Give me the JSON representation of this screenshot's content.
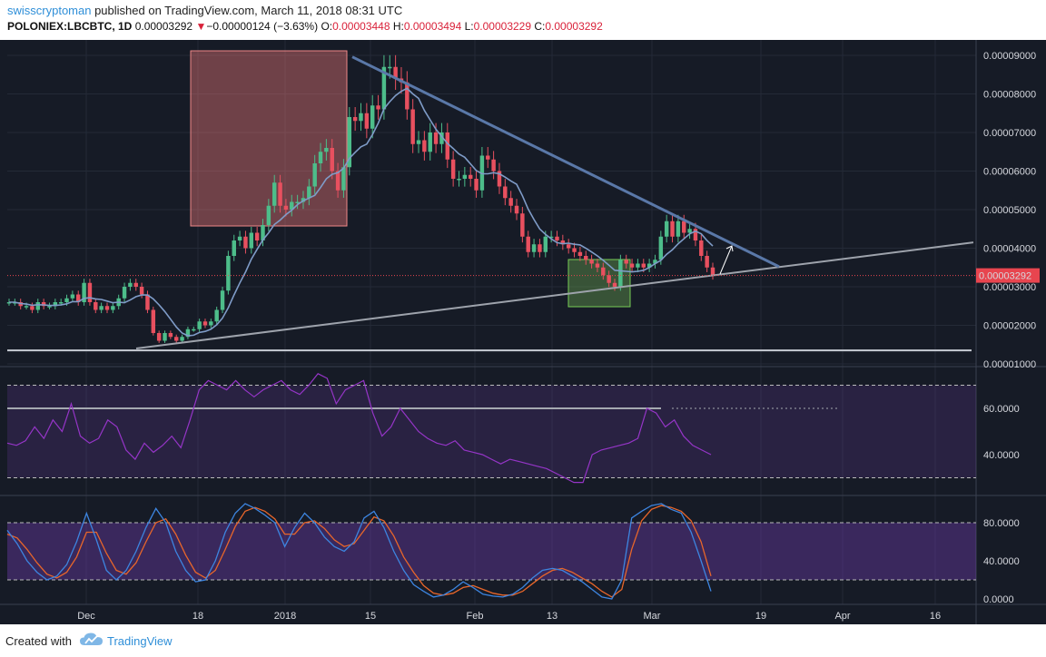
{
  "header": {
    "author": "swisscryptoman",
    "published_text": " published on TradingView.com, March 11, 2018 08:31 UTC",
    "symbol": "POLONIEX:LBCBTC, 1D",
    "last_price": "0.00003292",
    "change_arrow": "▼",
    "change": "−0.00000124 (−3.63%)",
    "o_label": "O:",
    "o_value": "0.00003448",
    "h_label": "H:",
    "h_value": "0.00003494",
    "l_label": "L:",
    "l_value": "0.00003229",
    "c_label": "C:",
    "c_value": "0.00003292"
  },
  "footer": {
    "created_with": "Created with",
    "brand": "TradingView"
  },
  "colors": {
    "background": "#161b26",
    "up": "#4dbd8a",
    "down": "#e8505f",
    "ma": "#7f9cc8",
    "trendline": "#5a78a8",
    "rsi": "#9535c7",
    "stoch_k": "#3d85e0",
    "stoch_d": "#e8662a",
    "price_label": "#e8454f"
  },
  "chart_data": [
    {
      "type": "candlestick",
      "title": "POLONIEX:LBCBTC, 1D",
      "y_tick_labels": [
        "0.00009000",
        "0.00008000",
        "0.00007000",
        "0.00006000",
        "0.00005000",
        "0.00004000",
        "0.00003000",
        "0.00002000",
        "0.00001000"
      ],
      "ylim": [
        9.6e-06,
        9.7e-06
      ],
      "last_price_label": "0.00003292",
      "x_tick_labels": [
        "Dec",
        "18",
        "2018",
        "15",
        "Feb",
        "13",
        "Mar",
        "19",
        "Apr",
        "16"
      ],
      "closes": [
        2.6e-05,
        2.6e-05,
        2.5e-05,
        2.5e-05,
        2.4e-05,
        2.6e-05,
        2.5e-05,
        2.5e-05,
        2.6e-05,
        2.6e-05,
        2.7e-05,
        2.8e-05,
        2.6e-05,
        3.1e-05,
        2.6e-05,
        2.4e-05,
        2.5e-05,
        2.4e-05,
        2.5e-05,
        2.7e-05,
        3e-05,
        3.1e-05,
        3e-05,
        2.8e-05,
        2.4e-05,
        1.8e-05,
        1.6e-05,
        1.8e-05,
        1.7e-05,
        1.6e-05,
        1.7e-05,
        1.9e-05,
        1.9e-05,
        2.1e-05,
        2e-05,
        2.1e-05,
        2.4e-05,
        2.9e-05,
        3.8e-05,
        4.2e-05,
        4.3e-05,
        4e-05,
        4.4e-05,
        4.2e-05,
        4.6e-05,
        5.1e-05,
        5.7e-05,
        5.1e-05,
        5e-05,
        5.2e-05,
        5.2e-05,
        5.3e-05,
        5.6e-05,
        6.2e-05,
        6.5e-05,
        6.6e-05,
        6e-05,
        5.5e-05,
        6.1e-05,
        7.4e-05,
        7.3e-05,
        7.5e-05,
        7.1e-05,
        7.7e-05,
        7.6e-05,
        8.7e-05,
        8.7e-05,
        8.4e-05,
        8.3e-05,
        7.6e-05,
        6.7e-05,
        6.8e-05,
        6.5e-05,
        7e-05,
        6.7e-05,
        7e-05,
        6.3e-05,
        5.8e-05,
        5.8e-05,
        5.9e-05,
        5.8e-05,
        5.5e-05,
        6.4e-05,
        6.3e-05,
        6e-05,
        5.6e-05,
        5.3e-05,
        5.1e-05,
        4.9e-05,
        4.3e-05,
        3.9e-05,
        4.1e-05,
        3.9e-05,
        4.3e-05,
        4.3e-05,
        4.2e-05,
        4.1e-05,
        4e-05,
        3.9e-05,
        3.8e-05,
        3.7e-05,
        3.6e-05,
        3.5e-05,
        3.3e-05,
        3.1e-05,
        3e-05,
        3.7e-05,
        3.6e-05,
        3.5e-05,
        3.6e-05,
        3.5e-05,
        3.6e-05,
        3.7e-05,
        4.3e-05,
        4.7e-05,
        4.3e-05,
        4.7e-05,
        4.4e-05,
        4.5e-05,
        4.2e-05,
        3.8e-05,
        3.5e-05,
        3.3e-05
      ],
      "ma_label": "",
      "horizontal_support": 1.35e-05,
      "rising_trendline": [
        [
          0.03,
          1.4e-05
        ],
        [
          1.0,
          4.15e-05
        ]
      ],
      "falling_trendline": [
        [
          0.0,
          8.96e-05
        ],
        [
          1.0,
          3.52e-05
        ]
      ]
    },
    {
      "type": "line",
      "title": "",
      "series": [
        {
          "values": [
            45,
            44,
            46,
            52,
            47,
            55,
            50,
            62,
            48,
            45,
            47,
            55,
            52,
            42,
            38,
            45,
            41,
            44,
            48,
            43,
            55,
            68,
            72,
            70,
            68,
            72,
            68,
            65,
            68,
            70,
            72,
            68,
            66,
            70,
            75,
            73,
            62,
            68,
            70,
            72,
            58,
            48,
            52,
            60,
            55,
            50,
            47,
            45,
            44,
            46,
            42,
            41,
            40,
            38,
            36,
            38,
            37,
            36,
            35,
            34,
            32,
            30,
            28,
            28,
            40,
            42,
            43,
            44,
            45,
            47,
            60,
            58,
            52,
            55,
            48,
            44,
            42,
            40
          ]
        }
      ],
      "y_tick_labels": [
        "60.0000",
        "40.0000"
      ],
      "ylim": [
        15,
        85
      ],
      "overbought": 70,
      "oversold": 30,
      "reference_line": 60
    },
    {
      "type": "line",
      "title": "",
      "series": [
        {
          "values": [
            72,
            58,
            40,
            28,
            20,
            24,
            36,
            60,
            90,
            62,
            30,
            20,
            30,
            50,
            75,
            95,
            80,
            50,
            30,
            18,
            20,
            40,
            70,
            90,
            100,
            95,
            88,
            80,
            55,
            75,
            90,
            80,
            65,
            55,
            50,
            60,
            85,
            92,
            75,
            50,
            30,
            15,
            8,
            2,
            4,
            10,
            18,
            12,
            5,
            3,
            2,
            5,
            12,
            22,
            30,
            32,
            30,
            24,
            18,
            10,
            2,
            0,
            20,
            85,
            92,
            98,
            100,
            94,
            90,
            70,
            40,
            8
          ]
        },
        {
          "values": [
            68,
            64,
            52,
            38,
            26,
            22,
            28,
            44,
            70,
            70,
            48,
            30,
            26,
            38,
            60,
            80,
            84,
            68,
            46,
            28,
            22,
            30,
            52,
            76,
            92,
            96,
            92,
            84,
            68,
            68,
            80,
            82,
            74,
            62,
            55,
            58,
            72,
            86,
            82,
            66,
            44,
            28,
            14,
            6,
            4,
            6,
            12,
            14,
            10,
            6,
            4,
            4,
            8,
            16,
            24,
            30,
            32,
            28,
            22,
            16,
            8,
            2,
            10,
            52,
            82,
            94,
            98,
            96,
            92,
            82,
            60,
            24
          ]
        }
      ],
      "y_tick_labels": [
        "80.0000",
        "40.0000",
        "0.0000"
      ],
      "ylim": [
        -5,
        110
      ],
      "upper_band": 80,
      "lower_band": 20
    }
  ]
}
